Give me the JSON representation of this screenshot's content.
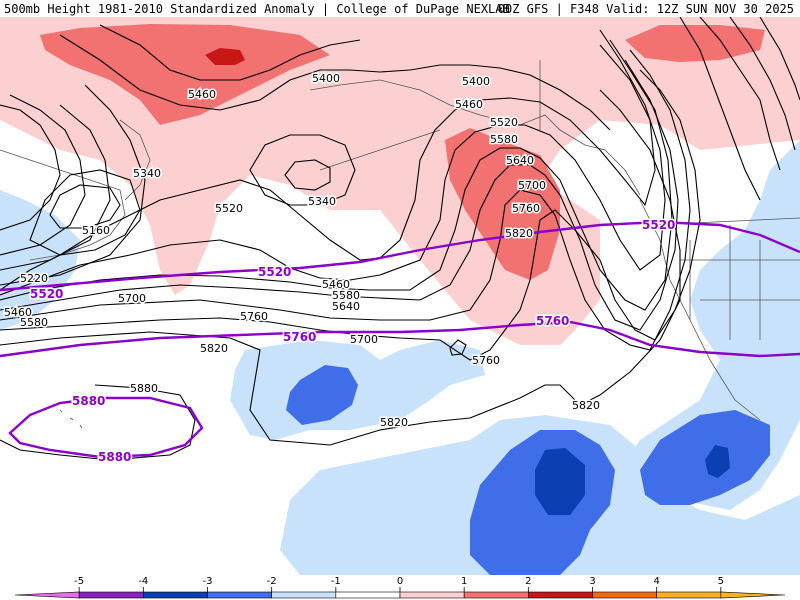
{
  "header": {
    "left_title": "500mb Height 1981-2010 Standardized Anomaly | College of DuPage NEXLAB",
    "right_title": "00Z GFS | F348 Valid: 12Z SUN NOV 30 2025"
  },
  "colors": {
    "anom_neg5": "#e56de5",
    "anom_neg4": "#8a22c0",
    "anom_neg3": "#0b3fb2",
    "anom_neg2": "#3f6ee8",
    "anom_neg1": "#c9e2fb",
    "anom_zero": "#ffffff",
    "anom_pos1": "#fcd0d0",
    "anom_pos2": "#f27171",
    "anom_pos3": "#c71717",
    "anom_pos4": "#ef6d00",
    "anom_pos5": "#f7b11a",
    "height_contour": "#000000",
    "reference_contour": "#8b00c9",
    "coastline": "#555555"
  },
  "height_labels": [
    "5400",
    "5400",
    "5460",
    "5460",
    "5520",
    "5580",
    "5640",
    "5700",
    "5760",
    "5820",
    "5340",
    "5340",
    "5160",
    "5220",
    "5460",
    "5580",
    "5520",
    "5460",
    "5580",
    "5640",
    "5700",
    "5760",
    "5700",
    "5820",
    "5880",
    "5820",
    "5760",
    "5820"
  ],
  "reference_labels": [
    "5520",
    "5520",
    "5520",
    "5760",
    "5760",
    "5880",
    "5880"
  ],
  "colorbar": {
    "ticks": [
      "-5",
      "-4",
      "-3",
      "-2",
      "-1",
      "0",
      "1",
      "2",
      "3",
      "4",
      "5"
    ]
  }
}
